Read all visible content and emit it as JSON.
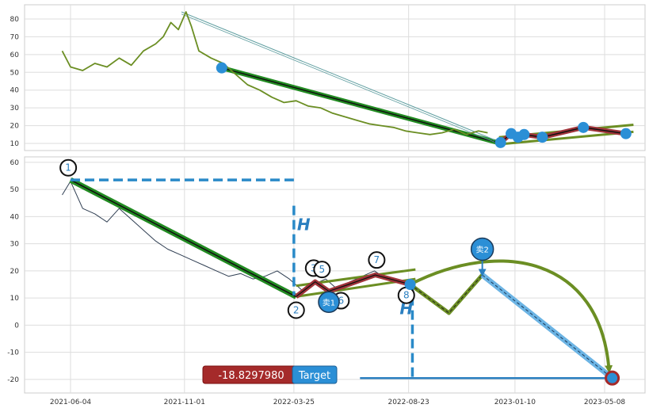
{
  "chart_data": [
    {
      "type": "line",
      "panel": "top",
      "title": "",
      "ylim": [
        6,
        88
      ],
      "yticks": [
        10,
        20,
        30,
        40,
        50,
        60,
        70,
        80
      ],
      "grid": true,
      "series_color": "#6b8e23",
      "price_series": [
        [
          "2021-05-24",
          62
        ],
        [
          "2021-06-04",
          53
        ],
        [
          "2021-06-20",
          51
        ],
        [
          "2021-07-06",
          55
        ],
        [
          "2021-07-22",
          53
        ],
        [
          "2021-08-07",
          58
        ],
        [
          "2021-08-23",
          54
        ],
        [
          "2021-09-08",
          62
        ],
        [
          "2021-09-24",
          66
        ],
        [
          "2021-10-04",
          70
        ],
        [
          "2021-10-14",
          78
        ],
        [
          "2021-10-24",
          74
        ],
        [
          "2021-11-03",
          84
        ],
        [
          "2021-11-10",
          76
        ],
        [
          "2021-11-20",
          62
        ],
        [
          "2021-12-06",
          58
        ],
        [
          "2021-12-22",
          55
        ],
        [
          "2022-01-07",
          49
        ],
        [
          "2022-01-23",
          43
        ],
        [
          "2022-02-08",
          40
        ],
        [
          "2022-02-24",
          36
        ],
        [
          "2022-03-12",
          33
        ],
        [
          "2022-03-28",
          34
        ],
        [
          "2022-04-13",
          31
        ],
        [
          "2022-04-29",
          30
        ],
        [
          "2022-05-15",
          27
        ],
        [
          "2022-05-31",
          25
        ],
        [
          "2022-06-16",
          23
        ],
        [
          "2022-07-02",
          21
        ],
        [
          "2022-07-18",
          20
        ],
        [
          "2022-08-03",
          19
        ],
        [
          "2022-08-19",
          17
        ],
        [
          "2022-09-04",
          16
        ],
        [
          "2022-09-20",
          15
        ],
        [
          "2022-10-06",
          16
        ],
        [
          "2022-10-22",
          18
        ],
        [
          "2022-11-07",
          15
        ],
        [
          "2022-11-23",
          17
        ],
        [
          "2022-12-05",
          16
        ]
      ],
      "overlay_lines": [
        {
          "color": "#228b22",
          "points": [
            [
              "2021-12-20",
              52.5
            ],
            [
              "2022-12-18",
              10.5
            ]
          ]
        },
        {
          "color": "#6b8e23",
          "points": [
            [
              "2022-12-20",
              13.5
            ],
            [
              "2023-06-15",
              20.5
            ]
          ]
        },
        {
          "color": "#6b8e23",
          "points": [
            [
              "2022-12-20",
              9.5
            ],
            [
              "2023-06-15",
              16.5
            ]
          ]
        },
        {
          "color": "#5f9ea0",
          "points": [
            [
              "2021-10-28",
              84
            ],
            [
              "2022-12-14",
              12
            ]
          ]
        }
      ],
      "zigzag": [
        [
          "2022-12-22",
          10.5
        ],
        [
          "2023-01-05",
          15.5
        ],
        [
          "2023-01-14",
          13.5
        ],
        [
          "2023-01-22",
          15
        ],
        [
          "2023-02-15",
          13.5
        ],
        [
          "2023-04-10",
          19
        ],
        [
          "2023-06-05",
          15.5
        ]
      ],
      "markers": [
        [
          "2021-12-20",
          52.5
        ],
        [
          "2022-12-22",
          10.5
        ],
        [
          "2023-01-05",
          15.5
        ],
        [
          "2023-01-14",
          13.5
        ],
        [
          "2023-01-22",
          15
        ],
        [
          "2023-02-15",
          13.5
        ],
        [
          "2023-04-10",
          19
        ],
        [
          "2023-06-05",
          15.5
        ]
      ],
      "marker_color": "#2b8fd6"
    },
    {
      "type": "line",
      "panel": "bottom",
      "title": "",
      "ylim": [
        -25,
        62
      ],
      "yticks": [
        -20,
        -10,
        0,
        10,
        20,
        30,
        40,
        50,
        60
      ],
      "xticks": [
        "2021-06-04",
        "2021-11-01",
        "2022-03-25",
        "2022-08-23",
        "2023-01-10",
        "2023-05-08"
      ],
      "grid": true,
      "series_color": "#2f3e52",
      "price_series": [
        [
          "2021-05-24",
          48
        ],
        [
          "2021-06-04",
          53
        ],
        [
          "2021-06-20",
          43
        ],
        [
          "2021-07-06",
          41
        ],
        [
          "2021-07-22",
          38
        ],
        [
          "2021-08-07",
          43
        ],
        [
          "2021-08-23",
          39
        ],
        [
          "2021-09-08",
          35
        ],
        [
          "2021-09-24",
          31
        ],
        [
          "2021-10-10",
          28
        ],
        [
          "2021-10-26",
          26
        ],
        [
          "2021-11-11",
          24
        ],
        [
          "2021-11-27",
          22
        ],
        [
          "2021-12-13",
          20
        ],
        [
          "2021-12-29",
          18
        ],
        [
          "2022-01-14",
          19
        ],
        [
          "2022-01-30",
          17
        ],
        [
          "2022-02-15",
          18
        ],
        [
          "2022-03-03",
          20
        ],
        [
          "2022-03-19",
          17
        ],
        [
          "2022-04-04",
          13
        ],
        [
          "2022-04-20",
          15
        ],
        [
          "2022-05-06",
          17
        ],
        [
          "2022-05-22",
          13
        ],
        [
          "2022-06-07",
          16
        ],
        [
          "2022-06-23",
          18
        ],
        [
          "2022-07-09",
          20
        ],
        [
          "2022-07-25",
          17
        ],
        [
          "2022-08-10",
          16
        ],
        [
          "2022-08-23",
          15
        ]
      ],
      "main_trend": [
        [
          "2021-06-04",
          53.5
        ],
        [
          "2022-03-28",
          10.5
        ]
      ],
      "channel_lines": [
        [
          [
            "2022-03-28",
            14.5
          ],
          [
            "2022-09-01",
            20.5
          ]
        ],
        [
          [
            "2022-03-28",
            10.5
          ],
          [
            "2022-09-01",
            17
          ]
        ]
      ],
      "zigzag": [
        [
          "2022-03-28",
          10.5
        ],
        [
          "2022-04-22",
          16
        ],
        [
          "2022-05-10",
          12.5
        ],
        [
          "2022-06-05",
          15
        ],
        [
          "2022-07-10",
          18.5
        ],
        [
          "2022-08-25",
          15
        ]
      ],
      "projection": [
        [
          "2022-08-25",
          15
        ],
        [
          "2022-10-15",
          4.5
        ],
        [
          "2022-11-28",
          18.5
        ]
      ],
      "projection_color": "#6b8e23",
      "arc_end": [
        "2023-05-18",
        -19.5
      ],
      "sell_line": [
        [
          "2022-11-28",
          18.5
        ],
        [
          "2023-05-18",
          -19.5
        ]
      ],
      "target_line": [
        [
          "2022-06-20",
          -19.5
        ],
        [
          "2023-05-18",
          -19.5
        ]
      ],
      "h_ref1": {
        "y": 53.5,
        "x_from": "2021-06-04",
        "x_to": "2022-03-25",
        "drop_x": "2022-03-25",
        "drop_to": 11
      },
      "h_ref2": {
        "x": "2022-08-28",
        "y_from": 16,
        "y_to": -19.5
      },
      "circle_labels": [
        {
          "label": "1",
          "at": [
            "2021-06-01",
            58
          ]
        },
        {
          "label": "2",
          "at": [
            "2022-03-28",
            5.5
          ]
        },
        {
          "label": "3",
          "at": [
            "2022-04-20",
            21
          ]
        },
        {
          "label": "5",
          "at": [
            "2022-05-01",
            20.5
          ]
        },
        {
          "label": "6",
          "at": [
            "2022-05-26",
            9
          ]
        },
        {
          "label": "7",
          "at": [
            "2022-07-12",
            24
          ]
        },
        {
          "label": "8",
          "at": [
            "2022-08-20",
            11
          ]
        }
      ],
      "sell_markers": [
        {
          "label": "卖1",
          "at": [
            "2022-05-10",
            8.5
          ]
        },
        {
          "label": "卖2",
          "at": [
            "2022-11-28",
            28
          ]
        }
      ],
      "h_labels": [
        "H",
        "H"
      ],
      "value_box": "-18.8297980",
      "target_box": "Target",
      "value_box_color": "#a52a2a",
      "target_box_color": "#2b8fd6",
      "trend_color": "#228b22",
      "zigzag_color": "#a0333a",
      "marker_color": "#2b8fd6"
    }
  ]
}
